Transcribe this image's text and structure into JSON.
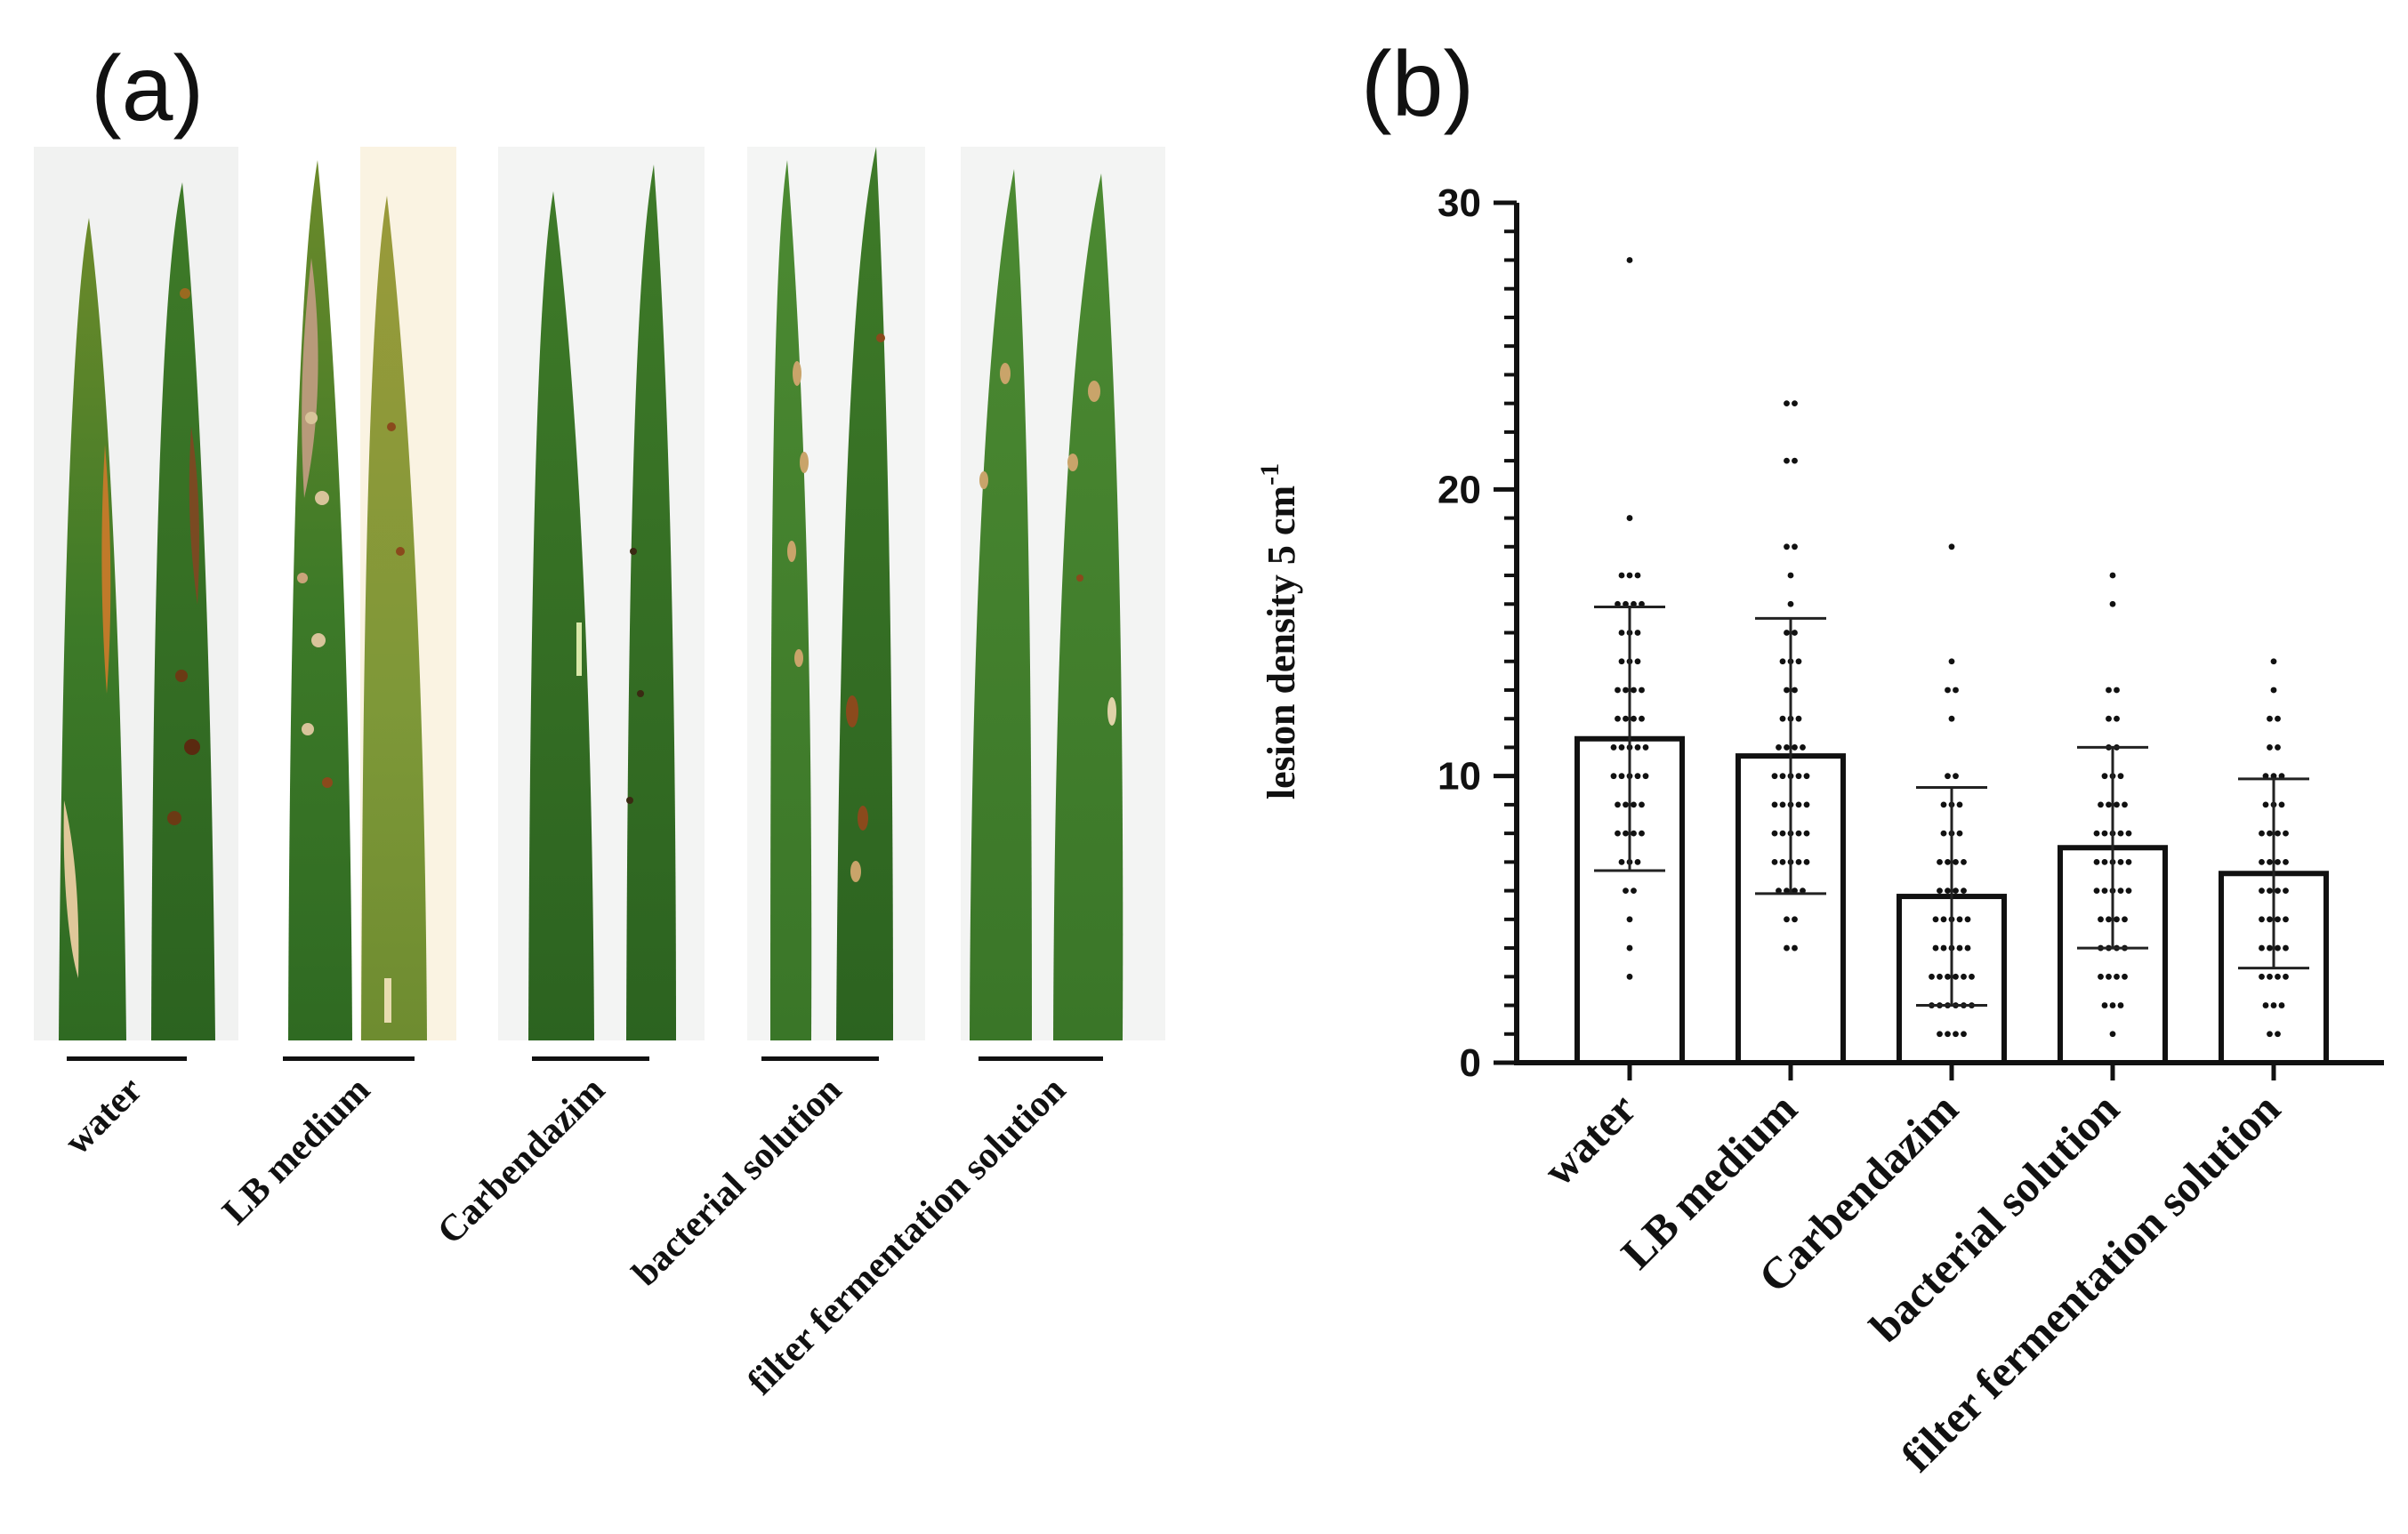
{
  "panel_a": {
    "letter": "(a)",
    "groups": [
      {
        "label": "water"
      },
      {
        "label": "LB medium"
      },
      {
        "label": "Carbendazim"
      },
      {
        "label": "bacterial solution"
      },
      {
        "label": "filter fermentation solution"
      }
    ],
    "colors": {
      "leaf_green": "#3f7a2a",
      "leaf_dark": "#2f6420",
      "leaf_yellow": "#8c9a3a",
      "lesion": "#8a4a1c",
      "lesion_light": "#d8c79a",
      "backdrop": "#f2f3f2"
    }
  },
  "panel_b": {
    "letter": "(b)"
  },
  "chart_data": {
    "type": "bar",
    "title": "",
    "xlabel": "",
    "ylabel": "lesion density 5 cm",
    "ylabel_superscript": "-1",
    "ylim": [
      0,
      30
    ],
    "yticks": [
      0,
      10,
      20,
      30
    ],
    "categories": [
      "water",
      "LB medium",
      "Carbendazim",
      "bacterial solution",
      "filter fermentation solution"
    ],
    "values": [
      11.3,
      10.7,
      5.8,
      7.5,
      6.6
    ],
    "error": [
      4.6,
      4.8,
      3.8,
      3.5,
      3.3
    ],
    "points": [
      [
        28,
        19,
        17,
        17,
        17,
        16,
        16,
        16,
        16,
        15,
        15,
        15,
        14,
        14,
        14,
        13,
        13,
        13,
        13,
        12,
        12,
        12,
        12,
        11,
        11,
        11,
        11,
        11,
        10,
        10,
        10,
        10,
        10,
        9,
        9,
        9,
        9,
        8,
        8,
        8,
        8,
        7,
        7,
        7,
        6,
        6,
        5,
        4,
        3
      ],
      [
        23,
        23,
        21,
        21,
        18,
        18,
        17,
        16,
        15,
        15,
        14,
        14,
        14,
        13,
        13,
        12,
        12,
        12,
        11,
        11,
        11,
        11,
        10,
        10,
        10,
        10,
        10,
        9,
        9,
        9,
        9,
        9,
        8,
        8,
        8,
        8,
        8,
        7,
        7,
        7,
        7,
        7,
        6,
        6,
        6,
        6,
        5,
        5,
        4,
        4
      ],
      [
        18,
        14,
        13,
        13,
        12,
        10,
        10,
        9,
        9,
        9,
        8,
        8,
        8,
        7,
        7,
        7,
        7,
        6,
        6,
        6,
        6,
        5,
        5,
        5,
        5,
        5,
        4,
        4,
        4,
        4,
        4,
        3,
        3,
        3,
        3,
        3,
        3,
        2,
        2,
        2,
        2,
        2,
        2,
        1,
        1,
        1,
        1
      ],
      [
        17,
        16,
        13,
        13,
        12,
        12,
        11,
        11,
        10,
        10,
        10,
        9,
        9,
        9,
        9,
        8,
        8,
        8,
        8,
        8,
        7,
        7,
        7,
        7,
        7,
        6,
        6,
        6,
        6,
        6,
        5,
        5,
        5,
        5,
        4,
        4,
        4,
        4,
        3,
        3,
        3,
        3,
        2,
        2,
        2,
        1
      ],
      [
        14,
        13,
        12,
        12,
        11,
        11,
        10,
        10,
        10,
        9,
        9,
        9,
        8,
        8,
        8,
        8,
        7,
        7,
        7,
        7,
        6,
        6,
        6,
        6,
        5,
        5,
        5,
        5,
        4,
        4,
        4,
        4,
        3,
        3,
        3,
        3,
        2,
        2,
        2,
        1,
        1
      ]
    ]
  }
}
